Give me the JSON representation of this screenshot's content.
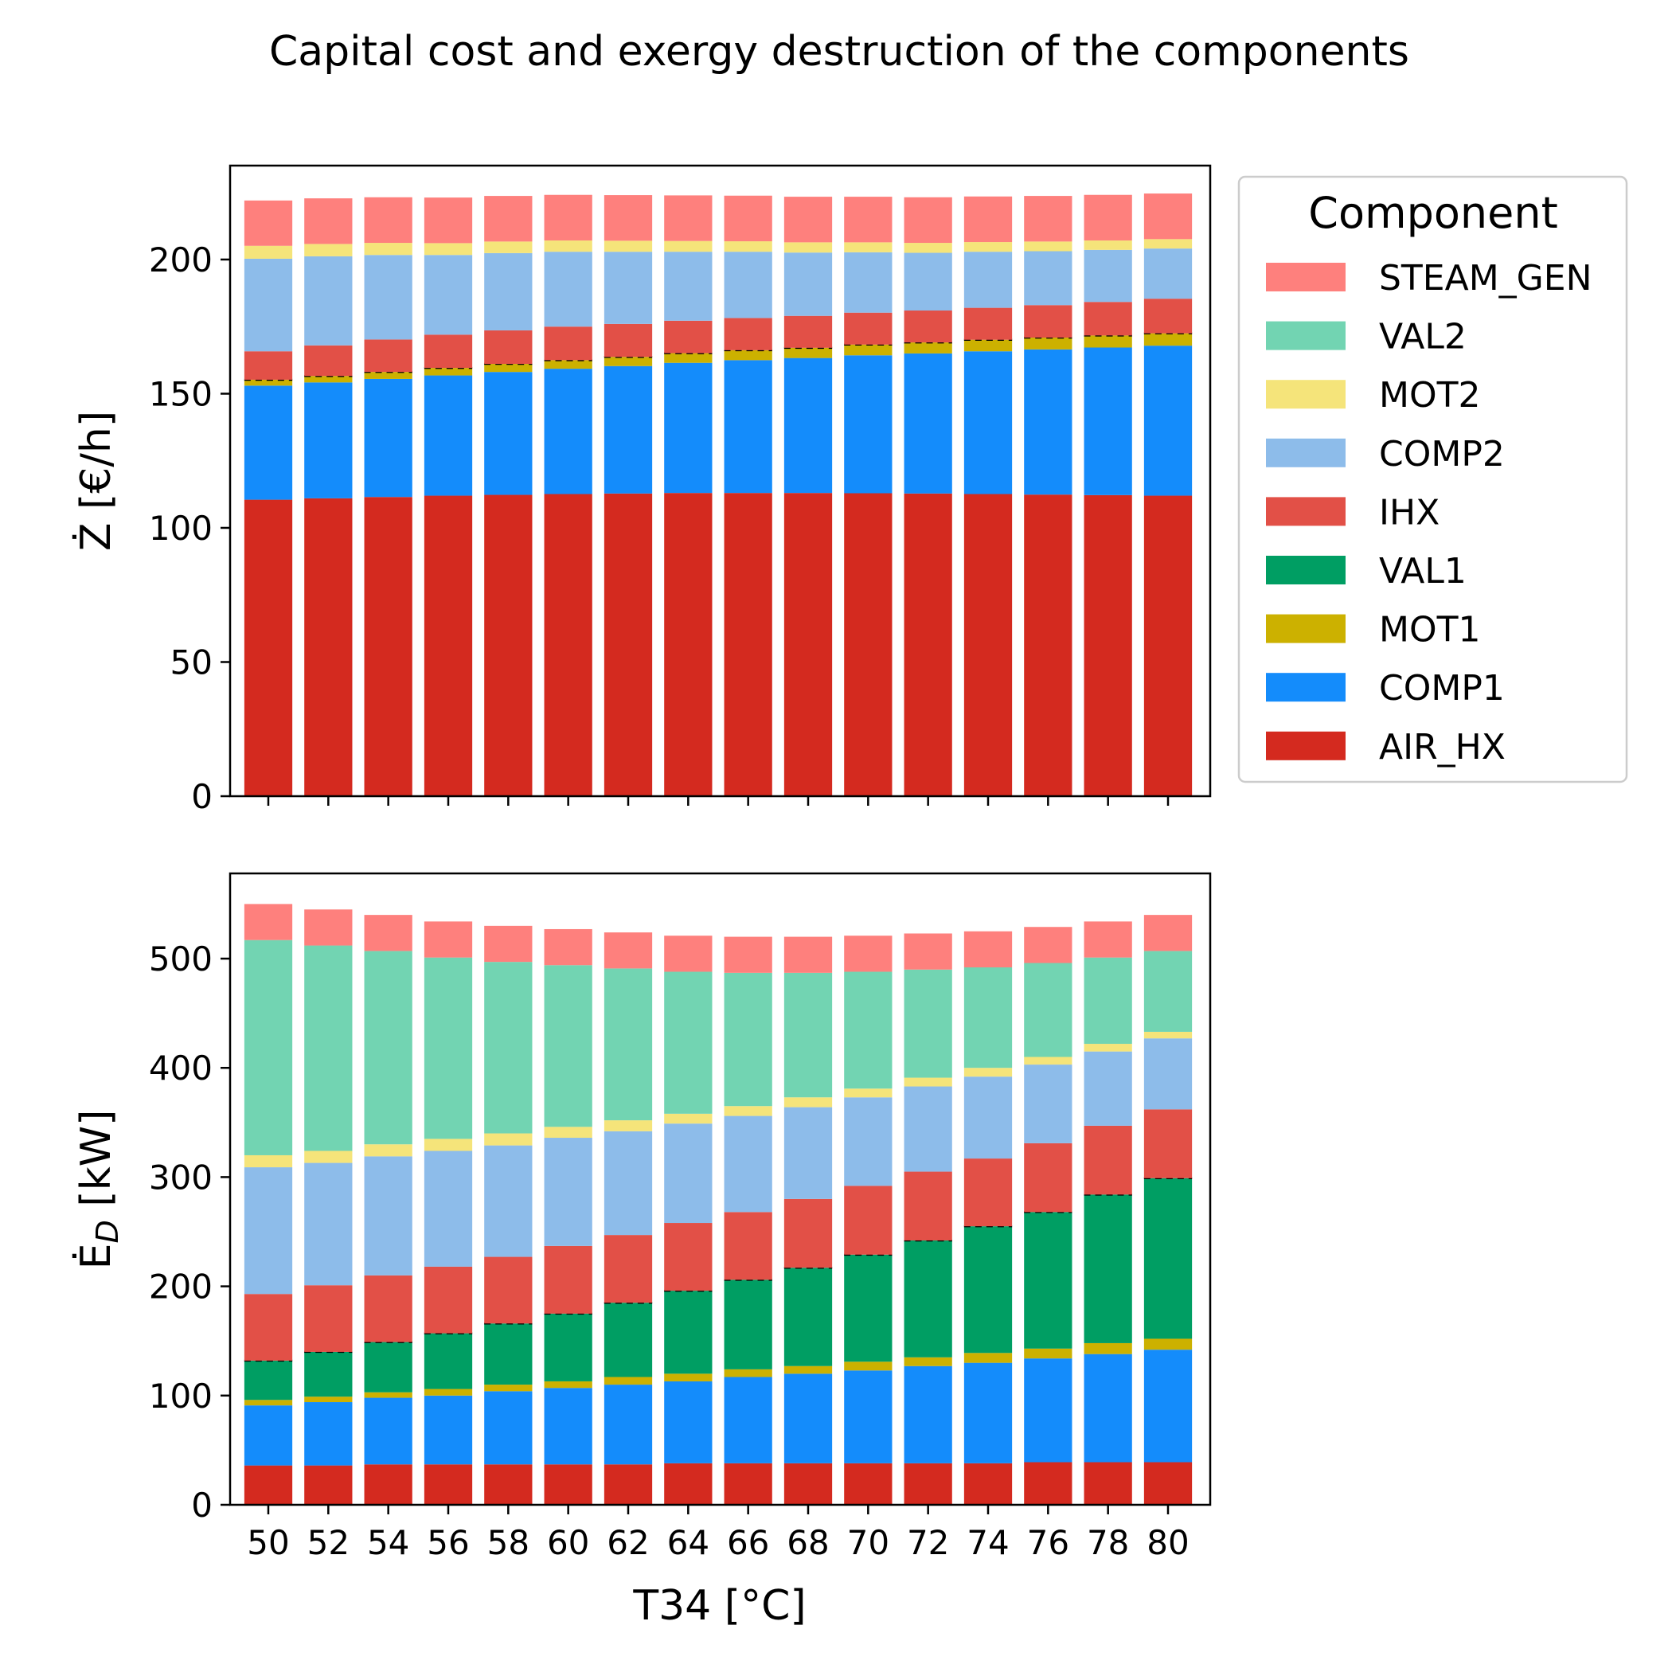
{
  "chart_data": {
    "title": "Capital cost and exergy destruction of the components",
    "legend_title": "Component",
    "legend_position": "outside-right-top",
    "xlabel": "T34 [°C]",
    "x": [
      50,
      52,
      54,
      56,
      58,
      60,
      62,
      64,
      66,
      68,
      70,
      72,
      74,
      76,
      78,
      80
    ],
    "component_colors": {
      "AIR_HX": "#d42a1f",
      "COMP1": "#148cfb",
      "MOT1": "#ccb100",
      "VAL1": "#009e63",
      "IHX": "#e25047",
      "COMP2": "#8dbcea",
      "MOT2": "#f5e47a",
      "VAL2": "#72d4b2",
      "STEAM_GEN": "#fe807d"
    },
    "legend_order": [
      "STEAM_GEN",
      "VAL2",
      "MOT2",
      "COMP2",
      "IHX",
      "VAL1",
      "MOT1",
      "COMP1",
      "AIR_HX"
    ],
    "charts": [
      {
        "type": "bar",
        "stacked": true,
        "ylabel": "Ż [€/h]",
        "ylim": [
          0,
          235
        ],
        "yticks": [
          0,
          50,
          100,
          150,
          200
        ],
        "dashed_marker_after": "VAL1",
        "series": [
          {
            "name": "AIR_HX",
            "values": [
              110.5,
              111.0,
              111.5,
              112.0,
              112.3,
              112.6,
              112.8,
              113.0,
              113.0,
              113.0,
              112.9,
              112.8,
              112.6,
              112.4,
              112.2,
              112.0
            ]
          },
          {
            "name": "COMP1",
            "values": [
              42.5,
              43.2,
              44.0,
              44.8,
              45.8,
              46.7,
              47.5,
              48.5,
              49.5,
              50.3,
              51.4,
              52.2,
              53.2,
              54.1,
              55.0,
              55.9
            ]
          },
          {
            "name": "MOT1",
            "values": [
              2.2,
              2.4,
              2.6,
              2.8,
              3.0,
              3.2,
              3.4,
              3.6,
              3.7,
              3.8,
              4.0,
              4.1,
              4.3,
              4.4,
              4.5,
              4.6
            ]
          },
          {
            "name": "VAL1",
            "values": [
              0,
              0,
              0,
              0,
              0,
              0,
              0,
              0,
              0,
              0,
              0,
              0,
              0,
              0,
              0,
              0
            ]
          },
          {
            "name": "IHX",
            "values": [
              10.6,
              11.4,
              12.1,
              12.4,
              12.5,
              12.5,
              12.3,
              12.1,
              12.0,
              11.9,
              11.9,
              11.9,
              11.9,
              12.1,
              12.5,
              12.9
            ]
          },
          {
            "name": "COMP2",
            "values": [
              34.5,
              33.2,
              31.5,
              29.7,
              28.8,
              27.9,
              26.9,
              25.7,
              24.7,
              23.6,
              22.5,
              21.5,
              20.9,
              20.1,
              19.4,
              18.7
            ]
          },
          {
            "name": "MOT2",
            "values": [
              4.8,
              4.6,
              4.5,
              4.4,
              4.3,
              4.2,
              4.1,
              4.0,
              3.9,
              3.8,
              3.7,
              3.7,
              3.6,
              3.6,
              3.5,
              3.5
            ]
          },
          {
            "name": "VAL2",
            "values": [
              0,
              0,
              0,
              0,
              0,
              0,
              0,
              0,
              0,
              0,
              0,
              0,
              0,
              0,
              0,
              0
            ]
          },
          {
            "name": "STEAM_GEN",
            "values": [
              16.9,
              17.0,
              17.0,
              17.0,
              17.0,
              17.0,
              17.0,
              17.0,
              17.0,
              17.0,
              17.0,
              17.0,
              17.0,
              17.0,
              17.0,
              17.0
            ]
          }
        ]
      },
      {
        "type": "bar",
        "stacked": true,
        "ylabel": "Ė_D [kW]",
        "ylim": [
          0,
          578
        ],
        "yticks": [
          0,
          100,
          200,
          300,
          400,
          500
        ],
        "dashed_marker_after": "VAL1",
        "series": [
          {
            "name": "AIR_HX",
            "values": [
              36,
              36,
              37,
              37,
              37,
              37,
              37,
              38,
              38,
              38,
              38,
              38,
              38,
              39,
              39,
              39
            ]
          },
          {
            "name": "COMP1",
            "values": [
              55,
              58,
              61,
              63,
              67,
              70,
              73,
              75,
              79,
              82,
              85,
              89,
              92,
              95,
              99,
              103
            ]
          },
          {
            "name": "MOT1",
            "values": [
              5,
              5,
              5,
              6,
              6,
              6,
              7,
              7,
              7,
              7,
              8,
              8,
              9,
              9,
              10,
              10
            ]
          },
          {
            "name": "VAL1",
            "values": [
              36,
              41,
              46,
              51,
              56,
              62,
              68,
              76,
              82,
              90,
              98,
              107,
              116,
              125,
              136,
              147
            ]
          },
          {
            "name": "IHX",
            "values": [
              61,
              61,
              61,
              61,
              61,
              62,
              62,
              62,
              62,
              63,
              63,
              63,
              62,
              63,
              63,
              63
            ]
          },
          {
            "name": "COMP2",
            "values": [
              116,
              112,
              109,
              106,
              102,
              99,
              95,
              91,
              88,
              84,
              81,
              78,
              75,
              72,
              68,
              65
            ]
          },
          {
            "name": "MOT2",
            "values": [
              11,
              11,
              11,
              11,
              11,
              10,
              10,
              9,
              9,
              9,
              8,
              8,
              8,
              7,
              7,
              6
            ]
          },
          {
            "name": "VAL2",
            "values": [
              197,
              188,
              177,
              166,
              157,
              148,
              139,
              130,
              122,
              114,
              107,
              99,
              92,
              86,
              79,
              74
            ]
          },
          {
            "name": "STEAM_GEN",
            "values": [
              33,
              33,
              33,
              33,
              33,
              33,
              33,
              33,
              33,
              33,
              33,
              33,
              33,
              33,
              33,
              33
            ]
          }
        ]
      }
    ]
  }
}
